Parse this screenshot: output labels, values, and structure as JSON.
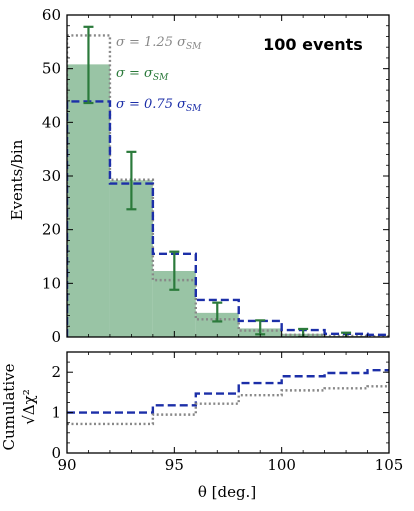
{
  "chart_data": [
    {
      "type": "bar",
      "panel": "top",
      "ylabel": "Events/bin",
      "xlabel": "",
      "xlim": [
        90,
        105
      ],
      "ylim": [
        0,
        60
      ],
      "annotation": "100 events",
      "bin_edges": [
        90,
        92,
        94,
        96,
        98,
        100,
        102,
        104,
        106
      ],
      "series": [
        {
          "name": "σ = σ_SM",
          "style": "filled-histogram",
          "color": "#7fb58f",
          "values": [
            50.8,
            29.2,
            12.3,
            4.5,
            1.6,
            0.6,
            0.2,
            0.1
          ]
        },
        {
          "name": "σ = 1.25 σ_SM",
          "style": "dotted-step",
          "color": "#888888",
          "values": [
            56.2,
            29.3,
            10.6,
            3.3,
            1.2,
            0.4,
            0.2,
            0.1
          ]
        },
        {
          "name": "σ = 0.75 σ_SM",
          "style": "dashed-step",
          "color": "#1c2fa8",
          "values": [
            43.9,
            28.6,
            15.5,
            6.9,
            3.0,
            1.3,
            0.6,
            0.4
          ]
        },
        {
          "name": "data",
          "style": "errorbar",
          "color": "#2b7a3b",
          "x": [
            91,
            93,
            95,
            97,
            99,
            101,
            103
          ],
          "y": [
            50.8,
            29.2,
            12.3,
            4.6,
            1.8,
            0.6,
            0.1
          ],
          "yerr_low": [
            7.2,
            5.4,
            3.5,
            1.7,
            1.3,
            0.6,
            0.5
          ],
          "yerr_high": [
            7.0,
            5.3,
            3.6,
            1.8,
            1.3,
            0.9,
            0.7
          ]
        }
      ]
    },
    {
      "type": "line",
      "panel": "bottom",
      "ylabel_line1": "Cumulative",
      "ylabel_line2": "√Δχ²",
      "xlabel": "θ [deg.]",
      "xlim": [
        90,
        105
      ],
      "ylim": [
        0,
        2.5
      ],
      "bin_edges": [
        90,
        92,
        94,
        96,
        98,
        100,
        102,
        104,
        106
      ],
      "series": [
        {
          "name": "σ = 0.75 σ_SM",
          "style": "dashed-step",
          "color": "#1c2fa8",
          "values": [
            1.0,
            1.0,
            1.18,
            1.47,
            1.73,
            1.9,
            1.98,
            2.05
          ]
        },
        {
          "name": "σ = 1.25 σ_SM",
          "style": "dotted-step",
          "color": "#888888",
          "values": [
            0.72,
            0.72,
            0.95,
            1.22,
            1.43,
            1.55,
            1.6,
            1.65
          ]
        }
      ]
    }
  ],
  "ticks": {
    "top_y": [
      "0",
      "10",
      "20",
      "30",
      "40",
      "50",
      "60"
    ],
    "bottom_y": [
      "0",
      "1",
      "2"
    ],
    "x": [
      "90",
      "95",
      "100",
      "105"
    ]
  },
  "legend": {
    "gray": "σ = 1.25 σ",
    "gray_sub": "SM",
    "green": "σ = σ",
    "green_sub": "SM",
    "blue": "σ = 0.75 σ",
    "blue_sub": "SM"
  }
}
